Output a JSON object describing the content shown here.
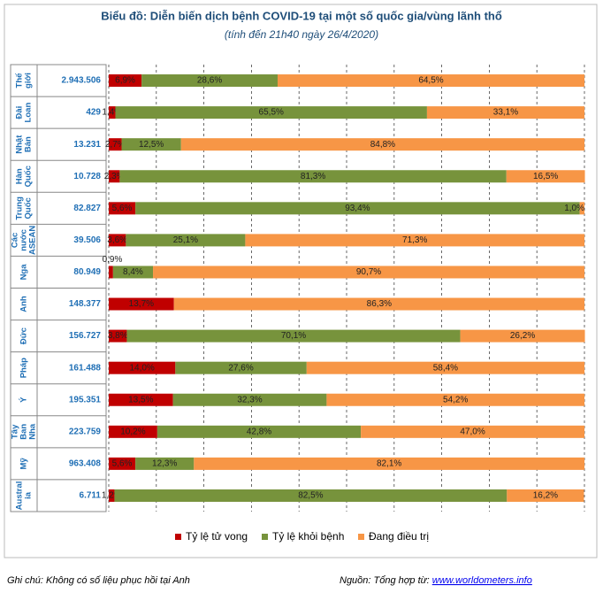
{
  "chart_data": {
    "type": "stacked_bar_horizontal",
    "title": "Biểu đồ: Diễn biến dịch bệnh COVID-19 tại một số quốc gia/vùng lãnh thổ",
    "subtitle": "(tính đến 21h40 ngày 26/4/2020)",
    "categories": [
      [
        "Thế",
        "giới"
      ],
      [
        "Đài",
        "Loan"
      ],
      [
        "Nhật",
        "Bản"
      ],
      [
        "Hàn",
        "Quốc"
      ],
      [
        "Trung",
        "Quốc"
      ],
      [
        "Các",
        "nước",
        "ASEAN"
      ],
      [
        "Nga"
      ],
      [
        "Anh"
      ],
      [
        "Đức"
      ],
      [
        "Pháp"
      ],
      [
        "Ý"
      ],
      [
        "Tây",
        "Ban",
        "Nha"
      ],
      [
        "Mỹ"
      ],
      [
        "Austral",
        "ia"
      ]
    ],
    "cases": [
      "2.943.506",
      "429",
      "13.231",
      "10.728",
      "82.827",
      "39.506",
      "80.949",
      "148.377",
      "156.727",
      "161.488",
      "195.351",
      "223.759",
      "963.408",
      "6.711"
    ],
    "xlim": [
      0,
      100
    ],
    "xticks": [
      0,
      10,
      20,
      30,
      40,
      50,
      60,
      70,
      80,
      90,
      100
    ],
    "grid": true,
    "legend": "bottom",
    "series": [
      {
        "name": "Tỷ lệ tử vong",
        "color": "#c00000",
        "values": [
          6.9,
          1.4,
          2.7,
          2.3,
          5.6,
          3.6,
          0.9,
          13.7,
          3.8,
          14.0,
          13.5,
          10.2,
          5.6,
          1.2
        ],
        "value_labels": [
          "6,9%",
          "1,4%",
          "2,7%",
          "2,3%",
          "5,6%",
          "3,6%",
          "0,9%",
          "13,7%",
          "3,8%",
          "14,0%",
          "13,5%",
          "10,2%",
          "5,6%",
          "1,2%"
        ]
      },
      {
        "name": "Tỷ lệ khỏi bệnh",
        "color": "#77933c",
        "values": [
          28.6,
          65.5,
          12.5,
          81.3,
          93.4,
          25.1,
          8.4,
          null,
          70.1,
          27.6,
          32.3,
          42.8,
          12.3,
          82.5
        ],
        "value_labels": [
          "28,6%",
          "65,5%",
          "12,5%",
          "81,3%",
          "93,4%",
          "25,1%",
          "8,4%",
          null,
          "70,1%",
          "27,6%",
          "32,3%",
          "42,8%",
          "12,3%",
          "82,5%"
        ]
      },
      {
        "name": "Đang điều trị",
        "color": "#f79646",
        "values": [
          64.5,
          33.1,
          84.8,
          16.5,
          1.0,
          71.3,
          90.7,
          86.3,
          26.2,
          58.4,
          54.2,
          47.0,
          82.1,
          16.2
        ],
        "value_labels": [
          "64,5%",
          "33,1%",
          "84,8%",
          "16,5%",
          "1,0%",
          "71,3%",
          "90,7%",
          "86,3%",
          "26,2%",
          "58,4%",
          "54,2%",
          "47,0%",
          "82,1%",
          "16,2%"
        ]
      }
    ],
    "note": "Ghi chú: Không có số liệu phục hồi tại Anh",
    "source": "Nguồn: Tổng hợp từ: ",
    "source_link": "www.worldometers.info"
  }
}
